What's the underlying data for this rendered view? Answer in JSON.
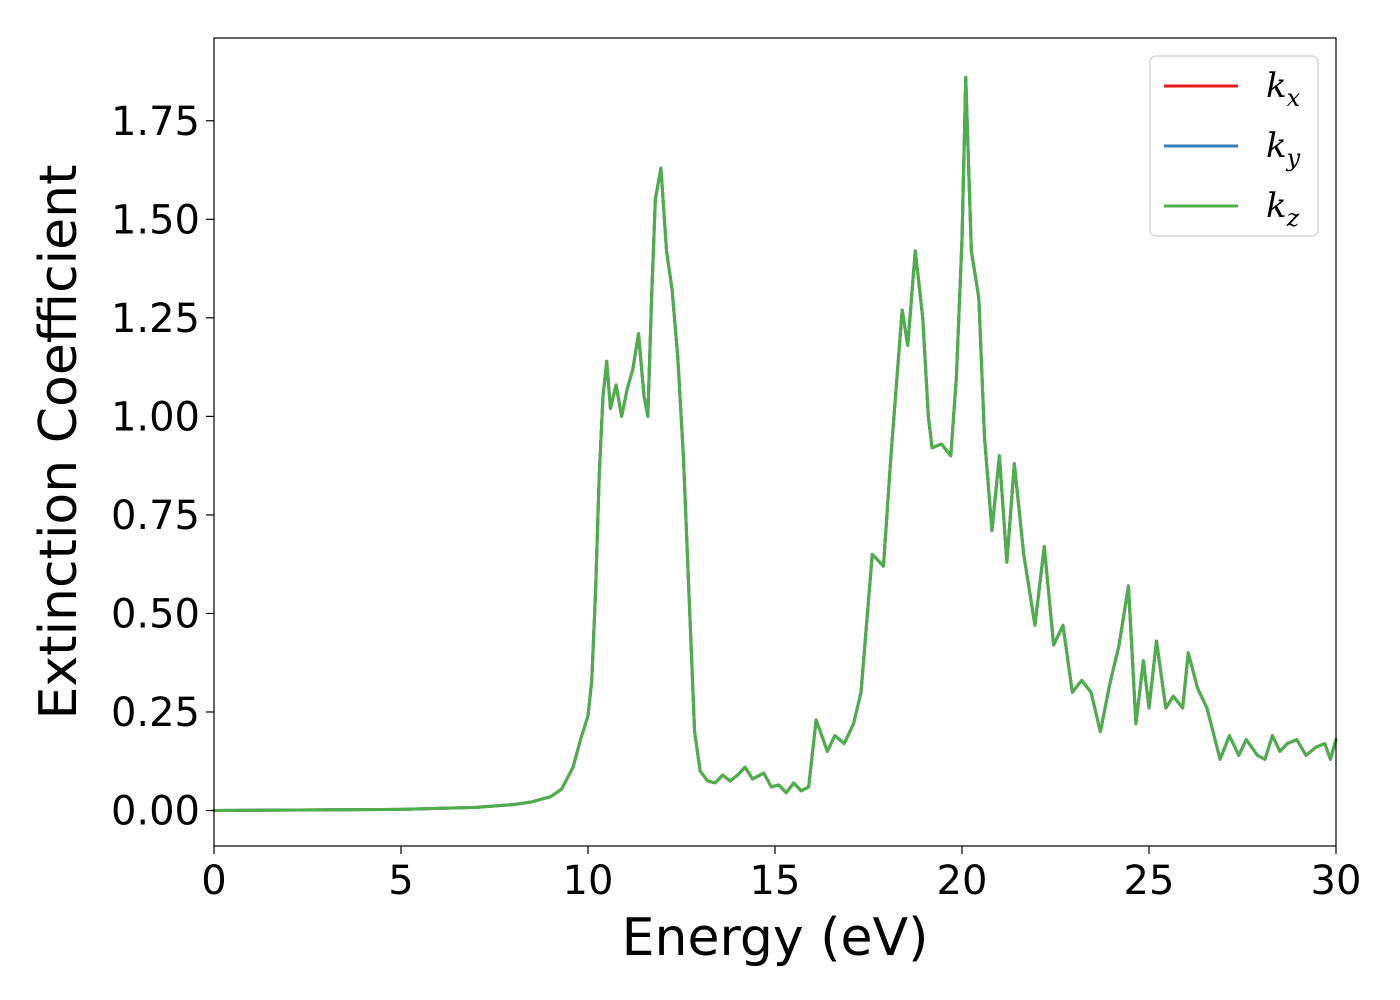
{
  "chart_data": {
    "type": "line",
    "xlabel": "Energy (eV)",
    "ylabel": "Extinction Coefficient",
    "xlim": [
      0,
      30
    ],
    "ylim": [
      -0.09,
      1.96
    ],
    "xticks": [
      0,
      5,
      10,
      15,
      20,
      25,
      30
    ],
    "xtick_labels": [
      "0",
      "5",
      "10",
      "15",
      "20",
      "25",
      "30"
    ],
    "yticks": [
      0,
      0.25,
      0.5,
      0.75,
      1.0,
      1.25,
      1.5,
      1.75
    ],
    "ytick_labels": [
      "0.00",
      "0.25",
      "0.50",
      "0.75",
      "1.00",
      "1.25",
      "1.50",
      "1.75"
    ],
    "grid": false,
    "legend_position": "top-right",
    "series": [
      {
        "name": "k_x",
        "label_base": "k",
        "label_sub": "x",
        "color": "#e41a1c",
        "x": [
          0,
          5,
          7,
          8,
          8.5,
          9,
          9.3,
          9.6,
          9.8,
          9.9,
          10.0,
          10.1,
          10.2,
          10.3,
          10.4,
          10.5,
          10.6,
          10.75,
          10.9,
          11.05,
          11.2,
          11.35,
          11.5,
          11.6,
          11.7,
          11.8,
          11.95,
          12.1,
          12.25,
          12.4,
          12.55,
          12.7,
          12.85,
          13.0,
          13.2,
          13.4,
          13.6,
          13.8,
          14.0,
          14.2,
          14.4,
          14.7,
          14.9,
          15.1,
          15.3,
          15.5,
          15.7,
          15.9,
          16.1,
          16.4,
          16.6,
          16.85,
          17.1,
          17.3,
          17.6,
          17.9,
          18.1,
          18.4,
          18.55,
          18.75,
          18.95,
          19.1,
          19.2,
          19.45,
          19.7,
          19.85,
          20.0,
          20.1,
          20.25,
          20.45,
          20.6,
          20.8,
          21.0,
          21.2,
          21.4,
          21.65,
          21.95,
          22.2,
          22.45,
          22.7,
          22.95,
          23.2,
          23.45,
          23.7,
          23.95,
          24.2,
          24.45,
          24.65,
          24.85,
          25.0,
          25.2,
          25.45,
          25.65,
          25.9,
          26.05,
          26.3,
          26.55,
          26.9,
          27.15,
          27.4,
          27.6,
          27.9,
          28.1,
          28.3,
          28.5,
          28.7,
          28.95,
          29.2,
          29.45,
          29.7,
          29.85,
          30.0
        ],
        "y": [
          0.0,
          0.003,
          0.008,
          0.015,
          0.022,
          0.035,
          0.055,
          0.11,
          0.18,
          0.21,
          0.24,
          0.33,
          0.55,
          0.85,
          1.05,
          1.14,
          1.02,
          1.08,
          1.0,
          1.07,
          1.12,
          1.21,
          1.05,
          1.0,
          1.3,
          1.55,
          1.63,
          1.42,
          1.32,
          1.15,
          0.9,
          0.55,
          0.2,
          0.1,
          0.075,
          0.07,
          0.09,
          0.075,
          0.09,
          0.11,
          0.08,
          0.095,
          0.06,
          0.065,
          0.045,
          0.07,
          0.05,
          0.06,
          0.23,
          0.15,
          0.19,
          0.17,
          0.22,
          0.3,
          0.65,
          0.62,
          0.9,
          1.27,
          1.18,
          1.42,
          1.25,
          1.0,
          0.92,
          0.93,
          0.9,
          1.1,
          1.45,
          1.86,
          1.42,
          1.3,
          0.95,
          0.71,
          0.9,
          0.63,
          0.88,
          0.65,
          0.47,
          0.67,
          0.42,
          0.47,
          0.3,
          0.33,
          0.3,
          0.2,
          0.32,
          0.42,
          0.57,
          0.22,
          0.38,
          0.26,
          0.43,
          0.26,
          0.29,
          0.26,
          0.4,
          0.31,
          0.26,
          0.13,
          0.19,
          0.14,
          0.18,
          0.14,
          0.13,
          0.19,
          0.15,
          0.17,
          0.18,
          0.14,
          0.16,
          0.17,
          0.13,
          0.18
        ]
      },
      {
        "name": "k_y",
        "label_base": "k",
        "label_sub": "y",
        "color": "#377eb8",
        "x": [
          0,
          5,
          7,
          8,
          8.5,
          9,
          9.3,
          9.6,
          9.8,
          9.9,
          10.0,
          10.1,
          10.2,
          10.3,
          10.4,
          10.5,
          10.6,
          10.75,
          10.9,
          11.05,
          11.2,
          11.35,
          11.5,
          11.6,
          11.7,
          11.8,
          11.95,
          12.1,
          12.25,
          12.4,
          12.55,
          12.7,
          12.85,
          13.0,
          13.2,
          13.4,
          13.6,
          13.8,
          14.0,
          14.2,
          14.4,
          14.7,
          14.9,
          15.1,
          15.3,
          15.5,
          15.7,
          15.9,
          16.1,
          16.4,
          16.6,
          16.85,
          17.1,
          17.3,
          17.6,
          17.9,
          18.1,
          18.4,
          18.55,
          18.75,
          18.95,
          19.1,
          19.2,
          19.45,
          19.7,
          19.85,
          20.0,
          20.1,
          20.25,
          20.45,
          20.6,
          20.8,
          21.0,
          21.2,
          21.4,
          21.65,
          21.95,
          22.2,
          22.45,
          22.7,
          22.95,
          23.2,
          23.45,
          23.7,
          23.95,
          24.2,
          24.45,
          24.65,
          24.85,
          25.0,
          25.2,
          25.45,
          25.65,
          25.9,
          26.05,
          26.3,
          26.55,
          26.9,
          27.15,
          27.4,
          27.6,
          27.9,
          28.1,
          28.3,
          28.5,
          28.7,
          28.95,
          29.2,
          29.45,
          29.7,
          29.85,
          30.0
        ],
        "y": [
          0.0,
          0.003,
          0.008,
          0.015,
          0.022,
          0.035,
          0.055,
          0.11,
          0.18,
          0.21,
          0.24,
          0.33,
          0.55,
          0.85,
          1.05,
          1.14,
          1.02,
          1.08,
          1.0,
          1.07,
          1.12,
          1.21,
          1.05,
          1.0,
          1.3,
          1.55,
          1.63,
          1.42,
          1.32,
          1.15,
          0.9,
          0.55,
          0.2,
          0.1,
          0.075,
          0.07,
          0.09,
          0.075,
          0.09,
          0.11,
          0.08,
          0.095,
          0.06,
          0.065,
          0.045,
          0.07,
          0.05,
          0.06,
          0.23,
          0.15,
          0.19,
          0.17,
          0.22,
          0.3,
          0.65,
          0.62,
          0.9,
          1.27,
          1.18,
          1.42,
          1.25,
          1.0,
          0.92,
          0.93,
          0.9,
          1.1,
          1.45,
          1.86,
          1.42,
          1.3,
          0.95,
          0.71,
          0.9,
          0.63,
          0.88,
          0.65,
          0.47,
          0.67,
          0.42,
          0.47,
          0.3,
          0.33,
          0.3,
          0.2,
          0.32,
          0.42,
          0.57,
          0.22,
          0.38,
          0.26,
          0.43,
          0.26,
          0.29,
          0.26,
          0.4,
          0.31,
          0.26,
          0.13,
          0.19,
          0.14,
          0.18,
          0.14,
          0.13,
          0.19,
          0.15,
          0.17,
          0.18,
          0.14,
          0.16,
          0.17,
          0.13,
          0.18
        ]
      },
      {
        "name": "k_z",
        "label_base": "k",
        "label_sub": "z",
        "color": "#4daf4a",
        "x": [
          0,
          5,
          7,
          8,
          8.5,
          9,
          9.3,
          9.6,
          9.8,
          9.9,
          10.0,
          10.1,
          10.2,
          10.3,
          10.4,
          10.5,
          10.6,
          10.75,
          10.9,
          11.05,
          11.2,
          11.35,
          11.5,
          11.6,
          11.7,
          11.8,
          11.95,
          12.1,
          12.25,
          12.4,
          12.55,
          12.7,
          12.85,
          13.0,
          13.2,
          13.4,
          13.6,
          13.8,
          14.0,
          14.2,
          14.4,
          14.7,
          14.9,
          15.1,
          15.3,
          15.5,
          15.7,
          15.9,
          16.1,
          16.4,
          16.6,
          16.85,
          17.1,
          17.3,
          17.6,
          17.9,
          18.1,
          18.4,
          18.55,
          18.75,
          18.95,
          19.1,
          19.2,
          19.45,
          19.7,
          19.85,
          20.0,
          20.1,
          20.25,
          20.45,
          20.6,
          20.8,
          21.0,
          21.2,
          21.4,
          21.65,
          21.95,
          22.2,
          22.45,
          22.7,
          22.95,
          23.2,
          23.45,
          23.7,
          23.95,
          24.2,
          24.45,
          24.65,
          24.85,
          25.0,
          25.2,
          25.45,
          25.65,
          25.9,
          26.05,
          26.3,
          26.55,
          26.9,
          27.15,
          27.4,
          27.6,
          27.9,
          28.1,
          28.3,
          28.5,
          28.7,
          28.95,
          29.2,
          29.45,
          29.7,
          29.85,
          30.0
        ],
        "y": [
          0.0,
          0.003,
          0.008,
          0.015,
          0.022,
          0.035,
          0.055,
          0.11,
          0.18,
          0.21,
          0.24,
          0.33,
          0.55,
          0.85,
          1.05,
          1.14,
          1.02,
          1.08,
          1.0,
          1.07,
          1.12,
          1.21,
          1.05,
          1.0,
          1.3,
          1.55,
          1.63,
          1.42,
          1.32,
          1.15,
          0.9,
          0.55,
          0.2,
          0.1,
          0.075,
          0.07,
          0.09,
          0.075,
          0.09,
          0.11,
          0.08,
          0.095,
          0.06,
          0.065,
          0.045,
          0.07,
          0.05,
          0.06,
          0.23,
          0.15,
          0.19,
          0.17,
          0.22,
          0.3,
          0.65,
          0.62,
          0.9,
          1.27,
          1.18,
          1.42,
          1.25,
          1.0,
          0.92,
          0.93,
          0.9,
          1.1,
          1.45,
          1.86,
          1.42,
          1.3,
          0.95,
          0.71,
          0.9,
          0.63,
          0.88,
          0.65,
          0.47,
          0.67,
          0.42,
          0.47,
          0.3,
          0.33,
          0.3,
          0.2,
          0.32,
          0.42,
          0.57,
          0.22,
          0.38,
          0.26,
          0.43,
          0.26,
          0.29,
          0.26,
          0.4,
          0.31,
          0.26,
          0.13,
          0.19,
          0.14,
          0.18,
          0.14,
          0.13,
          0.19,
          0.15,
          0.17,
          0.18,
          0.14,
          0.16,
          0.17,
          0.13,
          0.18
        ]
      }
    ]
  }
}
